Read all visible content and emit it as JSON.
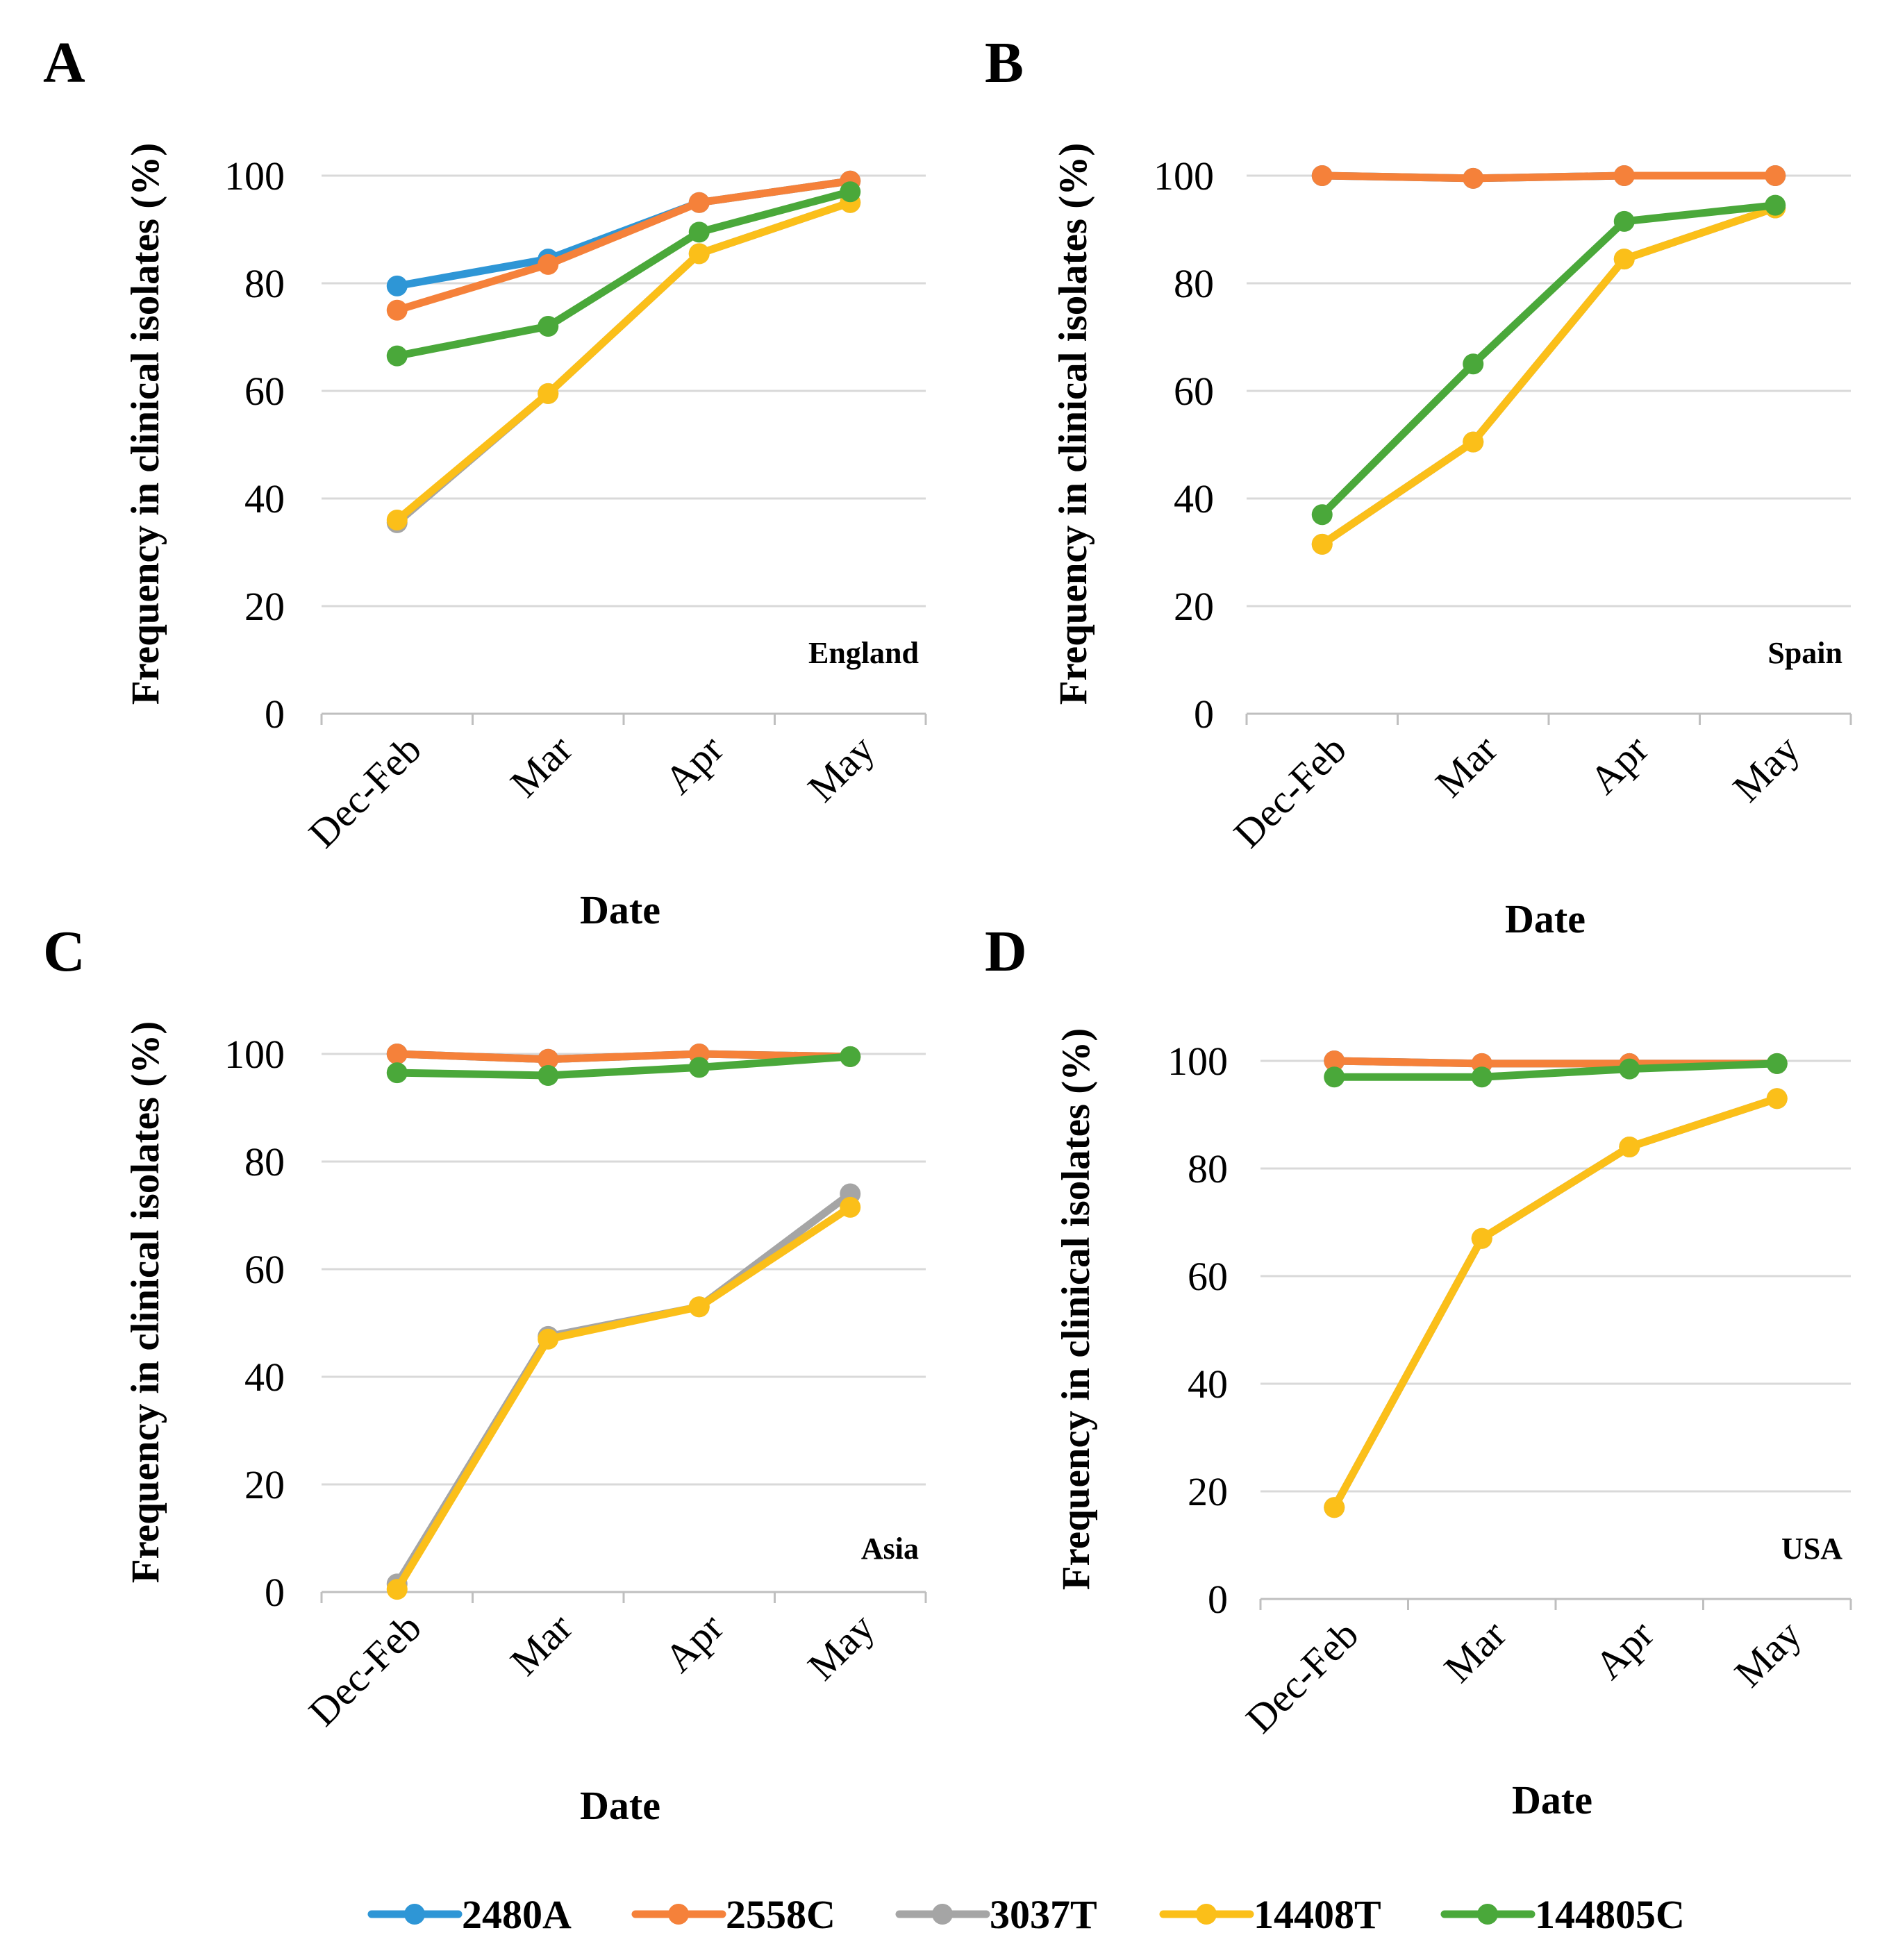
{
  "legend": [
    {
      "name": "2480A",
      "color": "#2e96d6"
    },
    {
      "name": "2558C",
      "color": "#f5813a"
    },
    {
      "name": "3037T",
      "color": "#a5a5a5"
    },
    {
      "name": "14408T",
      "color": "#fbbf19"
    },
    {
      "name": "144805C",
      "color": "#4aa83a"
    }
  ],
  "chart_data": [
    {
      "panel": "A",
      "type": "line",
      "region": "England",
      "xlabel": "Date",
      "ylabel": "Frequency in clinical isolates (%)",
      "ylim": [
        0,
        100
      ],
      "yticks": [
        0,
        20,
        40,
        60,
        80,
        100
      ],
      "categories": [
        "Dec-Feb",
        "Mar",
        "Apr",
        "May"
      ],
      "series": [
        {
          "name": "2480A",
          "color": "#2e96d6",
          "values": [
            79.5,
            84.5,
            95,
            99
          ]
        },
        {
          "name": "2558C",
          "color": "#f5813a",
          "values": [
            75,
            83.5,
            95,
            99
          ]
        },
        {
          "name": "3037T",
          "color": "#a5a5a5",
          "values": [
            35.5,
            59.5,
            85.5,
            95
          ]
        },
        {
          "name": "14408T",
          "color": "#fbbf19",
          "values": [
            36,
            59.5,
            85.5,
            95
          ]
        },
        {
          "name": "144805C",
          "color": "#4aa83a",
          "values": [
            66.5,
            72,
            89.5,
            97
          ]
        }
      ]
    },
    {
      "panel": "B",
      "type": "line",
      "region": "Spain",
      "xlabel": "Date",
      "ylabel": "Frequency in clinical isolates (%)",
      "ylim": [
        0,
        100
      ],
      "yticks": [
        0,
        20,
        40,
        60,
        80,
        100
      ],
      "categories": [
        "Dec-Feb",
        "Mar",
        "Apr",
        "May"
      ],
      "series": [
        {
          "name": "2480A",
          "color": "#2e96d6",
          "values": [
            100,
            99.5,
            100,
            100
          ]
        },
        {
          "name": "2558C",
          "color": "#f5813a",
          "values": [
            100,
            99.5,
            100,
            100
          ]
        },
        {
          "name": "3037T",
          "color": "#a5a5a5",
          "values": [
            31.5,
            50.5,
            84.5,
            94
          ]
        },
        {
          "name": "14408T",
          "color": "#fbbf19",
          "values": [
            31.5,
            50.5,
            84.5,
            94
          ]
        },
        {
          "name": "144805C",
          "color": "#4aa83a",
          "values": [
            37,
            65,
            91.5,
            94.5
          ]
        }
      ]
    },
    {
      "panel": "C",
      "type": "line",
      "region": "Asia",
      "xlabel": "Date",
      "ylabel": "Frequency in clinical isolates (%)",
      "ylim": [
        0,
        100
      ],
      "yticks": [
        0,
        20,
        40,
        60,
        80,
        100
      ],
      "categories": [
        "Dec-Feb",
        "Mar",
        "Apr",
        "May"
      ],
      "series": [
        {
          "name": "2480A",
          "color": "#2e96d6",
          "values": [
            100,
            99,
            100,
            99.5
          ]
        },
        {
          "name": "2558C",
          "color": "#f5813a",
          "values": [
            100,
            99,
            100,
            99.5
          ]
        },
        {
          "name": "3037T",
          "color": "#a5a5a5",
          "values": [
            1.5,
            47.5,
            53,
            74
          ]
        },
        {
          "name": "14408T",
          "color": "#fbbf19",
          "values": [
            0.5,
            47,
            53,
            71.5
          ]
        },
        {
          "name": "144805C",
          "color": "#4aa83a",
          "values": [
            96.5,
            96,
            97.5,
            99.5
          ]
        }
      ]
    },
    {
      "panel": "D",
      "type": "line",
      "region": "USA",
      "xlabel": "Date",
      "ylabel": "Frequency in clinical isolates (%)",
      "ylim": [
        0,
        100
      ],
      "yticks": [
        0,
        20,
        40,
        60,
        80,
        100
      ],
      "categories": [
        "Dec-Feb",
        "Mar",
        "Apr",
        "May"
      ],
      "series": [
        {
          "name": "2480A",
          "color": "#2e96d6",
          "values": [
            100,
            99.5,
            99.5,
            99.5
          ]
        },
        {
          "name": "2558C",
          "color": "#f5813a",
          "values": [
            100,
            99.5,
            99.5,
            99.5
          ]
        },
        {
          "name": "3037T",
          "color": "#a5a5a5",
          "values": [
            17,
            67,
            84,
            93
          ]
        },
        {
          "name": "14408T",
          "color": "#fbbf19",
          "values": [
            17,
            67,
            84,
            93
          ]
        },
        {
          "name": "144805C",
          "color": "#4aa83a",
          "values": [
            97,
            97,
            98.5,
            99.5
          ]
        }
      ]
    }
  ]
}
